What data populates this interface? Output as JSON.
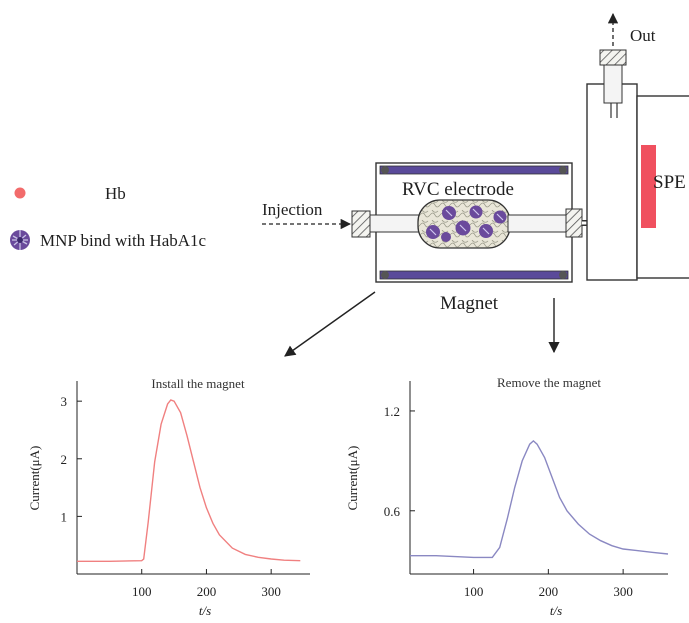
{
  "legend": {
    "hb_label": "Hb",
    "mnp_label": "MNP bind with HabA1c"
  },
  "apparatus": {
    "out_label": "Out",
    "injection_label": "Injection",
    "electrode_label": "RVC electrode",
    "magnet_label": "Magnet",
    "spe_label": "SPE"
  },
  "colors": {
    "hb_dot": "#f26b6b",
    "mnp": "#6a4a9c",
    "spe_bar": "#f0505f",
    "magnet_bar": "#5a4a9a",
    "trace_left": "#f08080",
    "trace_right": "#8a88c2"
  },
  "chart_data": [
    {
      "type": "line",
      "title": "Install the magnet",
      "xlabel": "t/s",
      "ylabel": "Current(μA)",
      "xlim": [
        0,
        360
      ],
      "ylim": [
        0,
        3.35
      ],
      "xticks": [
        100,
        200,
        300
      ],
      "yticks": [
        1,
        2,
        3
      ],
      "series": [
        {
          "x": [
            0,
            50,
            100,
            103,
            110,
            120,
            130,
            140,
            145,
            150,
            160,
            170,
            180,
            190,
            200,
            210,
            220,
            240,
            260,
            280,
            300,
            320,
            345
          ],
          "y": [
            0.22,
            0.22,
            0.23,
            0.26,
            0.9,
            1.95,
            2.6,
            2.95,
            3.02,
            3.0,
            2.8,
            2.4,
            1.95,
            1.5,
            1.15,
            0.88,
            0.68,
            0.45,
            0.34,
            0.29,
            0.26,
            0.24,
            0.23
          ]
        }
      ]
    },
    {
      "type": "line",
      "title": "Remove the magnet",
      "xlabel": "t/s",
      "ylabel": "Current(μA)",
      "xlim": [
        15,
        360
      ],
      "ylim": [
        0.22,
        1.38
      ],
      "xticks": [
        100,
        200,
        300
      ],
      "yticks": [
        0.6,
        1.2
      ],
      "series": [
        {
          "x": [
            15,
            50,
            100,
            125,
            135,
            145,
            155,
            165,
            175,
            180,
            185,
            195,
            205,
            215,
            225,
            240,
            255,
            270,
            285,
            300,
            320,
            340,
            360
          ],
          "y": [
            0.33,
            0.33,
            0.32,
            0.32,
            0.38,
            0.55,
            0.74,
            0.9,
            1.0,
            1.02,
            1.0,
            0.92,
            0.8,
            0.68,
            0.6,
            0.52,
            0.46,
            0.42,
            0.39,
            0.37,
            0.36,
            0.35,
            0.34
          ]
        }
      ]
    }
  ]
}
